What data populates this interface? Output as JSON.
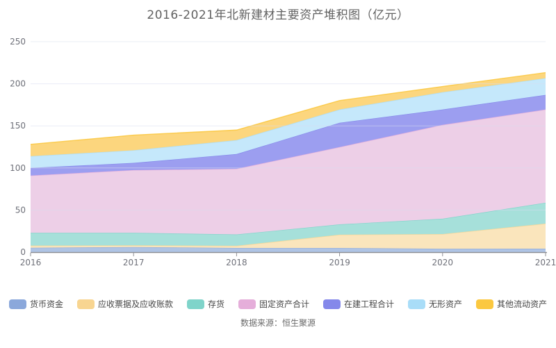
{
  "title": "2016-2021年北新建材主要资产堆积图（亿元）",
  "source_note": "数据来源：恒生聚源",
  "chart_data": {
    "type": "area",
    "stacked": true,
    "title": "2016-2021年北新建材主要资产堆积图（亿元）",
    "x": [
      2016,
      2017,
      2018,
      2019,
      2020,
      2021
    ],
    "series": [
      {
        "name": "货币资金",
        "color": "#8BA8DB",
        "fill": "#AFC4E5",
        "values": [
          5.2,
          6.0,
          5.0,
          5.0,
          4.0,
          4.1
        ]
      },
      {
        "name": "应收票据及应收账款",
        "color": "#F8D591",
        "fill": "#FAE5BC",
        "values": [
          2.5,
          2.0,
          2.5,
          15.7,
          17.5,
          29.8
        ]
      },
      {
        "name": "存货",
        "color": "#7FD4CA",
        "fill": "#A6E0DA",
        "values": [
          15.3,
          15.0,
          13.5,
          12.3,
          18.2,
          24.8
        ]
      },
      {
        "name": "固定资产合计",
        "color": "#E5AEDA",
        "fill": "#EDCFE7",
        "values": [
          68.0,
          74.5,
          78.0,
          91.8,
          111.5,
          110.7
        ]
      },
      {
        "name": "在建工程合计",
        "color": "#8488EA",
        "fill": "#9C9EF0",
        "values": [
          9.0,
          8.5,
          17.5,
          28.9,
          18.2,
          17.4
        ]
      },
      {
        "name": "无形资产",
        "color": "#A9DDF8",
        "fill": "#C5E8FB",
        "values": [
          14.0,
          15.0,
          16.5,
          15.7,
          20.6,
          19.8
        ]
      },
      {
        "name": "其他流动资产",
        "color": "#FBC840",
        "fill": "#FCD67E",
        "values": [
          14.0,
          18.0,
          12.0,
          10.6,
          6.7,
          6.6
        ]
      }
    ],
    "ylim": [
      0,
      250
    ],
    "yticks": [
      0,
      50,
      100,
      150,
      200,
      250
    ],
    "grid": true,
    "legend_position": "bottom",
    "axis_label_color": "#6E7079",
    "grid_color": "#D8DDEF",
    "axis_line_color": "#8F9096"
  }
}
